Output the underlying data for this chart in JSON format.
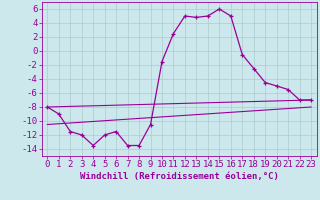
{
  "xlabel": "Windchill (Refroidissement éolien,°C)",
  "bg_color": "#cce8ec",
  "grid_color": "#aacccc",
  "line_color": "#990099",
  "x_hours": [
    0,
    1,
    2,
    3,
    4,
    5,
    6,
    7,
    8,
    9,
    10,
    11,
    12,
    13,
    14,
    15,
    16,
    17,
    18,
    19,
    20,
    21,
    22,
    23
  ],
  "main_line": [
    -8.0,
    -9.0,
    -11.5,
    -12.0,
    -13.5,
    -12.0,
    -11.5,
    -13.5,
    -13.5,
    -10.5,
    -1.5,
    2.5,
    5.0,
    4.8,
    5.0,
    6.0,
    5.0,
    -0.5,
    -2.5,
    -4.5,
    -5.0,
    -5.5,
    -7.0,
    -7.0
  ],
  "line1_x": [
    0,
    23
  ],
  "line1_y": [
    -8.0,
    -7.0
  ],
  "line2_x": [
    0,
    23
  ],
  "line2_y": [
    -10.5,
    -8.0
  ],
  "xlim": [
    -0.5,
    23.5
  ],
  "ylim": [
    -15,
    7
  ],
  "yticks": [
    6,
    4,
    2,
    0,
    -2,
    -4,
    -6,
    -8,
    -10,
    -12,
    -14
  ],
  "xticks": [
    0,
    1,
    2,
    3,
    4,
    5,
    6,
    7,
    8,
    9,
    10,
    11,
    12,
    13,
    14,
    15,
    16,
    17,
    18,
    19,
    20,
    21,
    22,
    23
  ],
  "tick_fontsize": 6.5,
  "xlabel_fontsize": 6.5
}
